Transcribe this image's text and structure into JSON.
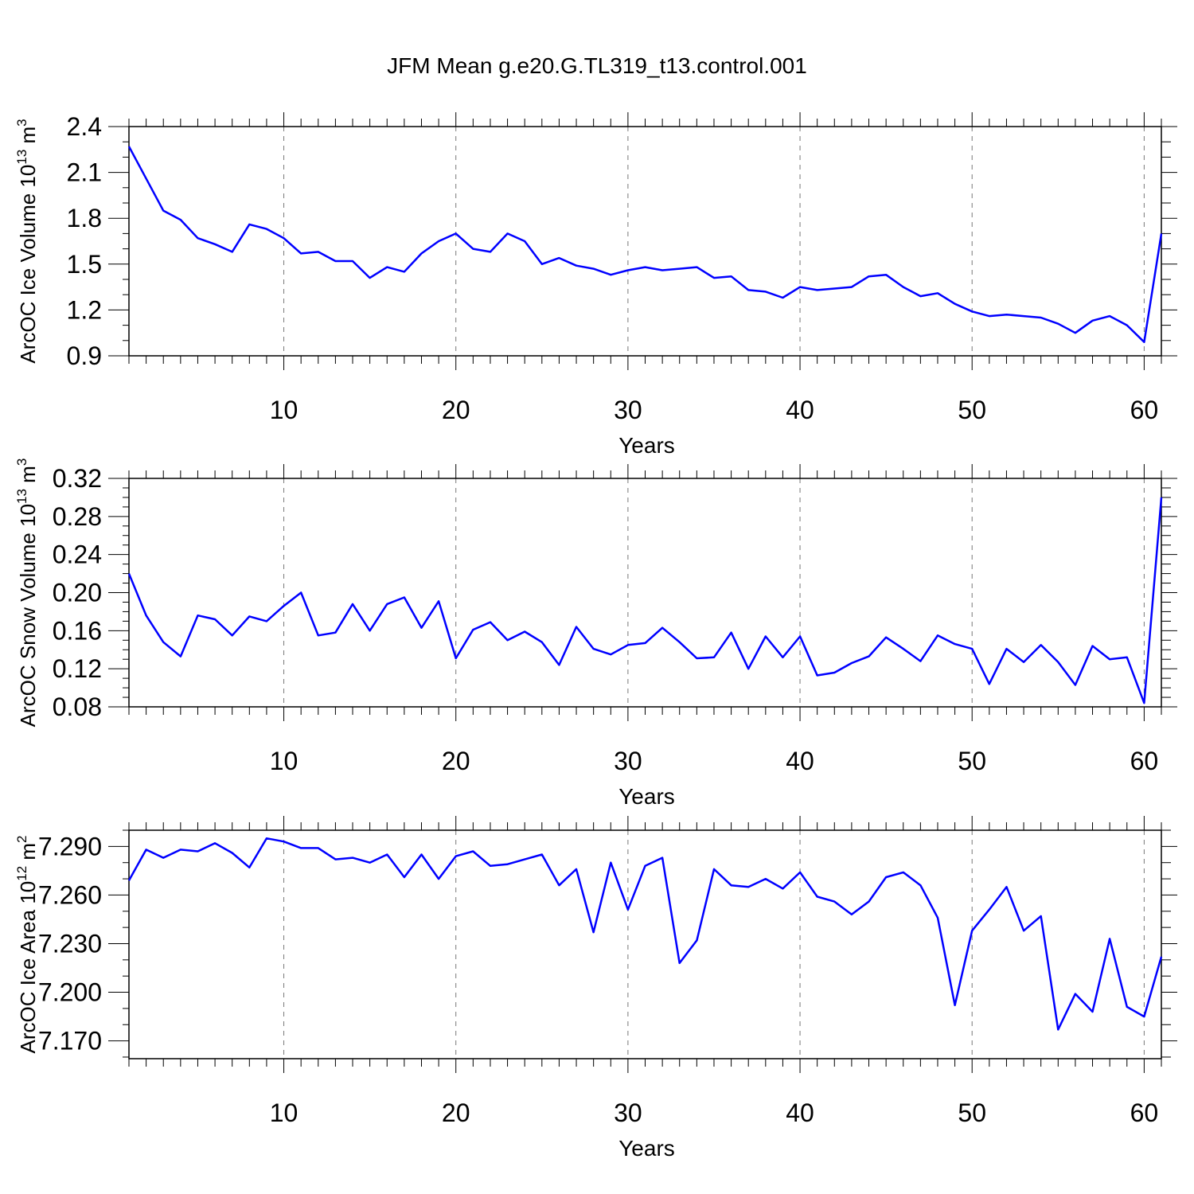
{
  "title": "JFM Mean g.e20.G.TL319_t13.control.001",
  "colors": {
    "series": "#0000ff",
    "axis": "#000000",
    "grid": "#777777"
  },
  "chart_data": [
    {
      "type": "line",
      "ylabel": "ArcOC Ice Volume 10",
      "ylabel_sup1": "13",
      "ylabel_unit": " m",
      "ylabel_sup2": "3",
      "xlabel": "Years",
      "xlim": [
        1,
        61
      ],
      "ylim": [
        0.9,
        2.4
      ],
      "x_ticks": [
        10,
        20,
        30,
        40,
        50,
        60
      ],
      "y_ticks": [
        "0.9",
        "1.2",
        "1.5",
        "1.8",
        "2.1",
        "2.4"
      ],
      "grid_x": true,
      "x": [
        1,
        2,
        3,
        4,
        5,
        6,
        7,
        8,
        9,
        10,
        11,
        12,
        13,
        14,
        15,
        16,
        17,
        18,
        19,
        20,
        21,
        22,
        23,
        24,
        25,
        26,
        27,
        28,
        29,
        30,
        31,
        32,
        33,
        34,
        35,
        36,
        37,
        38,
        39,
        40,
        41,
        42,
        43,
        44,
        45,
        46,
        47,
        48,
        49,
        50,
        51,
        52,
        53,
        54,
        55,
        56,
        57,
        58,
        59,
        60,
        61
      ],
      "values": [
        2.27,
        2.06,
        1.85,
        1.79,
        1.67,
        1.63,
        1.58,
        1.76,
        1.73,
        1.67,
        1.57,
        1.58,
        1.52,
        1.52,
        1.41,
        1.48,
        1.45,
        1.57,
        1.65,
        1.7,
        1.6,
        1.58,
        1.7,
        1.65,
        1.5,
        1.54,
        1.49,
        1.47,
        1.43,
        1.46,
        1.48,
        1.46,
        1.47,
        1.48,
        1.41,
        1.42,
        1.33,
        1.32,
        1.28,
        1.35,
        1.33,
        1.34,
        1.35,
        1.42,
        1.43,
        1.35,
        1.29,
        1.31,
        1.24,
        1.19,
        1.16,
        1.17,
        1.16,
        1.15,
        1.11,
        1.05,
        1.13,
        1.16,
        1.1,
        0.99,
        1.7
      ]
    },
    {
      "type": "line",
      "ylabel": "ArcOC Snow Volume 10",
      "ylabel_sup1": "13",
      "ylabel_unit": " m",
      "ylabel_sup2": "3",
      "xlabel": "Years",
      "xlim": [
        1,
        61
      ],
      "ylim": [
        0.08,
        0.32
      ],
      "x_ticks": [
        10,
        20,
        30,
        40,
        50,
        60
      ],
      "y_ticks": [
        "0.08",
        "0.12",
        "0.16",
        "0.20",
        "0.24",
        "0.28",
        "0.32"
      ],
      "grid_x": true,
      "x": [
        1,
        2,
        3,
        4,
        5,
        6,
        7,
        8,
        9,
        10,
        11,
        12,
        13,
        14,
        15,
        16,
        17,
        18,
        19,
        20,
        21,
        22,
        23,
        24,
        25,
        26,
        27,
        28,
        29,
        30,
        31,
        32,
        33,
        34,
        35,
        36,
        37,
        38,
        39,
        40,
        41,
        42,
        43,
        44,
        45,
        46,
        47,
        48,
        49,
        50,
        51,
        52,
        53,
        54,
        55,
        56,
        57,
        58,
        59,
        60,
        61
      ],
      "values": [
        0.22,
        0.176,
        0.148,
        0.133,
        0.176,
        0.172,
        0.155,
        0.175,
        0.17,
        0.186,
        0.2,
        0.155,
        0.158,
        0.188,
        0.16,
        0.188,
        0.195,
        0.163,
        0.191,
        0.131,
        0.161,
        0.169,
        0.15,
        0.159,
        0.148,
        0.124,
        0.164,
        0.141,
        0.135,
        0.145,
        0.147,
        0.163,
        0.148,
        0.131,
        0.132,
        0.158,
        0.12,
        0.154,
        0.132,
        0.154,
        0.113,
        0.116,
        0.126,
        0.133,
        0.153,
        0.141,
        0.128,
        0.155,
        0.146,
        0.141,
        0.104,
        0.141,
        0.127,
        0.145,
        0.127,
        0.103,
        0.144,
        0.13,
        0.132,
        0.084,
        0.3
      ]
    },
    {
      "type": "line",
      "ylabel": "ArcOC Ice Area 10",
      "ylabel_sup1": "12",
      "ylabel_unit": " m",
      "ylabel_sup2": "2",
      "xlabel": "Years",
      "xlim": [
        1,
        61
      ],
      "ylim": [
        7.159,
        7.3
      ],
      "x_ticks": [
        10,
        20,
        30,
        40,
        50,
        60
      ],
      "y_ticks": [
        "7.170",
        "7.200",
        "7.230",
        "7.260",
        "7.290"
      ],
      "grid_x": true,
      "x": [
        1,
        2,
        3,
        4,
        5,
        6,
        7,
        8,
        9,
        10,
        11,
        12,
        13,
        14,
        15,
        16,
        17,
        18,
        19,
        20,
        21,
        22,
        23,
        24,
        25,
        26,
        27,
        28,
        29,
        30,
        31,
        32,
        33,
        34,
        35,
        36,
        37,
        38,
        39,
        40,
        41,
        42,
        43,
        44,
        45,
        46,
        47,
        48,
        49,
        50,
        51,
        52,
        53,
        54,
        55,
        56,
        57,
        58,
        59,
        60,
        61
      ],
      "values": [
        7.269,
        7.288,
        7.283,
        7.288,
        7.287,
        7.292,
        7.286,
        7.277,
        7.295,
        7.293,
        7.289,
        7.289,
        7.282,
        7.283,
        7.28,
        7.285,
        7.271,
        7.285,
        7.27,
        7.284,
        7.287,
        7.278,
        7.279,
        7.282,
        7.285,
        7.266,
        7.276,
        7.237,
        7.28,
        7.251,
        7.278,
        7.283,
        7.218,
        7.232,
        7.276,
        7.266,
        7.265,
        7.27,
        7.264,
        7.274,
        7.259,
        7.256,
        7.248,
        7.256,
        7.271,
        7.274,
        7.266,
        7.246,
        7.192,
        7.238,
        7.251,
        7.265,
        7.238,
        7.247,
        7.177,
        7.199,
        7.188,
        7.233,
        7.191,
        7.185,
        7.222
      ]
    }
  ]
}
